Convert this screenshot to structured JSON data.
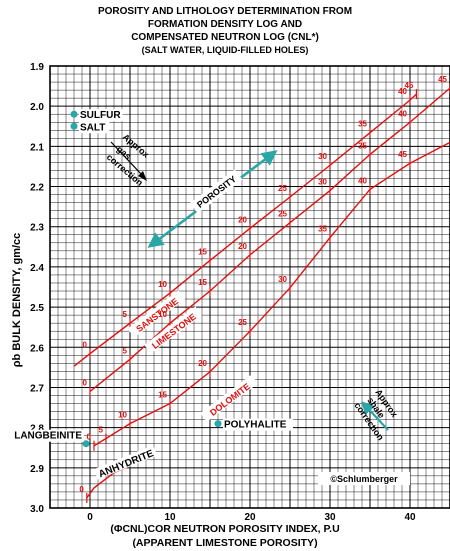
{
  "chart_data": {
    "type": "line",
    "title": "POROSITY AND LITHOLOGY DETERMINATION FROM",
    "title_line2": "FORMATION DENSITY LOG AND",
    "title_line3": "COMPENSATED NEUTRON LOG (CNL*)",
    "subtitle": "(SALT WATER, LIQUID-FILLED HOLES)",
    "xlabel": "(ΦCNL)COR NEUTRON POROSITY INDEX, P.U",
    "xlabel2": "(APPARENT LIMESTONE POROSITY)",
    "ylabel": "ρb BULK DENSITY, gm/cc",
    "xlim": [
      -5,
      45
    ],
    "ylim": [
      3.0,
      1.9
    ],
    "grid": true,
    "xticks": [
      0,
      10,
      20,
      30,
      40
    ],
    "yticks": [
      1.9,
      2.0,
      2.1,
      2.2,
      2.3,
      2.4,
      2.5,
      2.6,
      2.7,
      2.8,
      2.9,
      3.0
    ],
    "ytick_labels": [
      "1.9",
      "2.0",
      "2.1",
      "2.2",
      "2.3",
      "2.4",
      "2.5",
      "2.6",
      "2.7",
      "2.8",
      "2.9",
      "3.0"
    ],
    "series": [
      {
        "name": "SANSTONE",
        "color": "#e01010",
        "points": [
          [
            -2,
            2.647
          ],
          [
            0,
            2.616
          ],
          [
            5,
            2.54
          ],
          [
            10,
            2.465
          ],
          [
            15,
            2.384
          ],
          [
            20,
            2.304
          ],
          [
            25,
            2.226
          ],
          [
            30,
            2.147
          ],
          [
            35,
            2.066
          ],
          [
            40,
            1.985
          ],
          [
            40.8,
            1.97
          ]
        ],
        "porosity_labels": [
          "0",
          "5",
          "10",
          "15",
          "20",
          "25",
          "30",
          "35",
          "40",
          "45"
        ],
        "label_at": [
          8.4,
          2.52
        ]
      },
      {
        "name": "LIMESTONE",
        "color": "#e01010",
        "points": [
          [
            0,
            2.71
          ],
          [
            5,
            2.63
          ],
          [
            10,
            2.54
          ],
          [
            15,
            2.46
          ],
          [
            20,
            2.37
          ],
          [
            25,
            2.29
          ],
          [
            30,
            2.21
          ],
          [
            35,
            2.12
          ],
          [
            40,
            2.04
          ],
          [
            45,
            1.955
          ]
        ],
        "porosity_labels": [
          "0",
          "5",
          "10",
          "15",
          "20",
          "25",
          "30",
          "35",
          "40",
          "45"
        ],
        "label_at": [
          10.5,
          2.56
        ]
      },
      {
        "name": "DOLOMITE",
        "color": "#e01010",
        "points": [
          [
            0.5,
            2.845
          ],
          [
            2,
            2.827
          ],
          [
            5,
            2.79
          ],
          [
            10,
            2.74
          ],
          [
            15,
            2.661
          ],
          [
            20,
            2.56
          ],
          [
            25,
            2.452
          ],
          [
            30,
            2.327
          ],
          [
            35,
            2.207
          ],
          [
            40,
            2.142
          ],
          [
            45,
            2.09
          ]
        ],
        "porosity_labels": [
          "0",
          "5",
          "10",
          "15",
          "20",
          "25",
          "30",
          "35",
          "40",
          "45"
        ],
        "label_at": [
          17.5,
          2.73
        ]
      },
      {
        "name": "ANHYDRITE",
        "color": "#e01010",
        "points": [
          [
            -0.4,
            2.975
          ],
          [
            0.5,
            2.95
          ],
          [
            3,
            2.912
          ],
          [
            5,
            2.895
          ]
        ],
        "porosity_labels": [
          "0"
        ],
        "label_at": [
          4.5,
          2.89
        ]
      }
    ],
    "minerals": [
      {
        "name": "SULFUR",
        "x": -2,
        "y": 2.02
      },
      {
        "name": "SALT",
        "x": -2,
        "y": 2.05
      },
      {
        "name": "LANGBEINITE",
        "x": -0.5,
        "y": 2.84
      },
      {
        "name": "POLYHALITE",
        "x": 16,
        "y": 2.79
      }
    ],
    "annotations": {
      "gas": [
        "Approx",
        "gas",
        "correction"
      ],
      "porosity": "POROSITY",
      "shale": [
        "Approx",
        "shale",
        "correction"
      ],
      "copyright": "©Schlumberger"
    }
  }
}
